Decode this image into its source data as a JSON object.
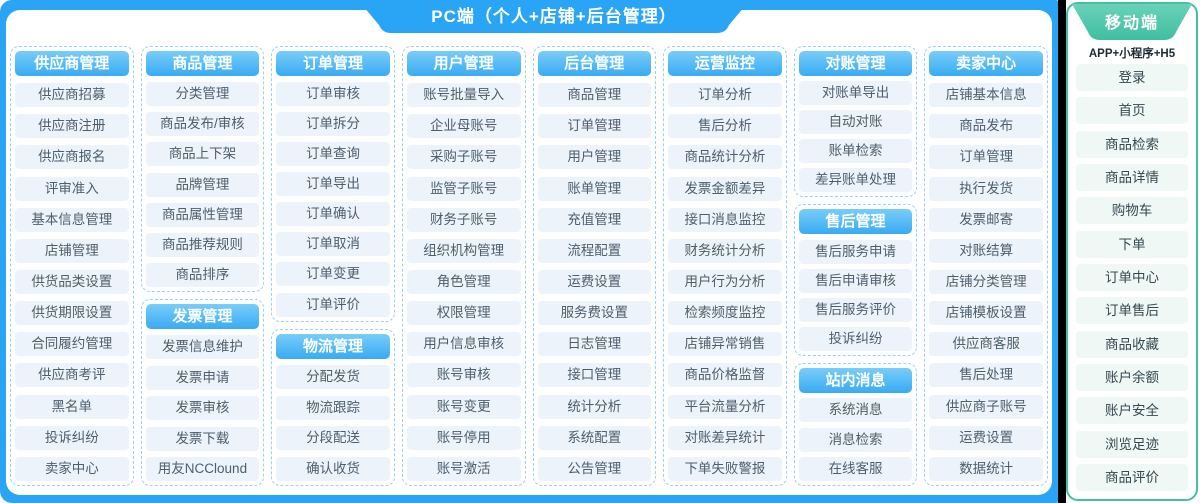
{
  "pc": {
    "title": "PC端（个人+店铺+后台管理）",
    "columns": [
      {
        "groups": [
          {
            "header": "供应商管理",
            "items": [
              "供应商招募",
              "供应商注册",
              "供应商报名",
              "评审准入",
              "基本信息管理",
              "店铺管理",
              "供货品类设置",
              "供货期限设置",
              "合同履约管理",
              "供应商考评",
              "黑名单",
              "投诉纠纷",
              "卖家中心"
            ]
          }
        ]
      },
      {
        "groups": [
          {
            "header": "商品管理",
            "items": [
              "分类管理",
              "商品发布/审核",
              "商品上下架",
              "品牌管理",
              "商品属性管理",
              "商品推荐规则",
              "商品排序"
            ]
          },
          {
            "header": "发票管理",
            "items": [
              "发票信息维护",
              "发票申请",
              "发票审核",
              "发票下载",
              "用友NCClound"
            ]
          }
        ]
      },
      {
        "groups": [
          {
            "header": "订单管理",
            "items": [
              "订单审核",
              "订单拆分",
              "订单查询",
              "订单导出",
              "订单确认",
              "订单取消",
              "订单变更",
              "订单评价"
            ]
          },
          {
            "header": "物流管理",
            "items": [
              "分配发货",
              "物流跟踪",
              "分段配送",
              "确认收货"
            ]
          }
        ]
      },
      {
        "groups": [
          {
            "header": "用户管理",
            "items": [
              "账号批量导入",
              "企业母账号",
              "采购子账号",
              "监管子账号",
              "财务子账号",
              "组织机构管理",
              "角色管理",
              "权限管理",
              "用户信息审核",
              "账号审核",
              "账号变更",
              "账号停用",
              "账号激活"
            ]
          }
        ]
      },
      {
        "groups": [
          {
            "header": "后台管理",
            "items": [
              "商品管理",
              "订单管理",
              "用户管理",
              "账单管理",
              "充值管理",
              "流程配置",
              "运费设置",
              "服务费设置",
              "日志管理",
              "接口管理",
              "统计分析",
              "系统配置",
              "公告管理"
            ]
          }
        ]
      },
      {
        "groups": [
          {
            "header": "运营监控",
            "items": [
              "订单分析",
              "售后分析",
              "商品统计分析",
              "发票金额差异",
              "接口消息监控",
              "财务统计分析",
              "用户行为分析",
              "检索频度监控",
              "店铺异常销售",
              "商品价格监督",
              "平台流量分析",
              "对账差异统计",
              "下单失败警报"
            ]
          }
        ]
      },
      {
        "groups": [
          {
            "header": "对账管理",
            "items": [
              "对账单导出",
              "自动对账",
              "账单检索",
              "差异账单处理"
            ]
          },
          {
            "header": "售后管理",
            "items": [
              "售后服务申请",
              "售后申请审核",
              "售后服务评价",
              "投诉纠纷"
            ]
          },
          {
            "header": "站内消息",
            "items": [
              "系统消息",
              "消息检索",
              "在线客服"
            ]
          }
        ]
      },
      {
        "groups": [
          {
            "header": "卖家中心",
            "items": [
              "店铺基本信息",
              "商品发布",
              "订单管理",
              "执行发货",
              "发票邮寄",
              "对账结算",
              "店铺分类管理",
              "店铺模板设置",
              "供应商客服",
              "售后处理",
              "供应商子账号",
              "运费设置",
              "数据统计"
            ]
          }
        ]
      }
    ]
  },
  "mobile": {
    "title": "移动端",
    "subtitle": "APP+小程序+H5",
    "items": [
      "登录",
      "首页",
      "商品检索",
      "商品详情",
      "购物车",
      "下单",
      "订单中心",
      "订单售后",
      "商品收藏",
      "账户余额",
      "账户安全",
      "浏览足迹",
      "商品评价"
    ]
  },
  "colors": {
    "pc_accent": "#2AA4F4",
    "pc_header_gradient_top": "#79CDF8",
    "pc_header_gradient_bottom": "#38ABF3",
    "pc_item_bg": "#ECF3FA",
    "dashed_border": "#9BD0F2",
    "divider": "#000000",
    "mobile_accent": "#43BFA3",
    "mobile_tab_gradient_top": "#6AD2B9",
    "mobile_tab_gradient_bottom": "#3FBFA0",
    "mobile_item_bg": "#EFF8F5"
  }
}
